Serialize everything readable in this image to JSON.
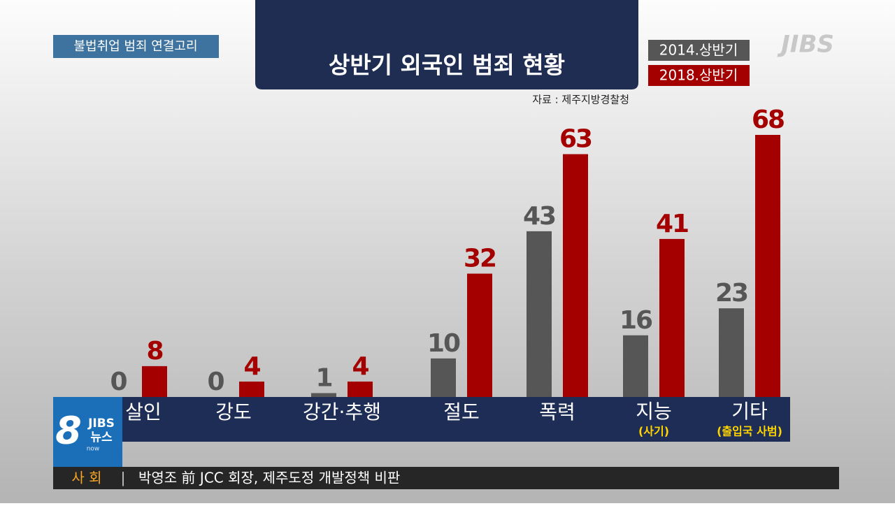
{
  "chart_data": {
    "type": "bar",
    "title": "상반기 외국인 범죄 현황",
    "source": "자료 : 제주지방경찰청",
    "categories": [
      "살인",
      "강도",
      "강간·추행",
      "절도",
      "폭력",
      "지능",
      "기타"
    ],
    "category_notes": [
      null,
      null,
      null,
      null,
      null,
      "(사기)",
      "(출입국 사범)"
    ],
    "series": [
      {
        "name": "2014.상반기",
        "color": "#565656",
        "values": [
          0,
          0,
          1,
          10,
          43,
          16,
          23
        ]
      },
      {
        "name": "2018.상반기",
        "color": "#a50000",
        "values": [
          8,
          4,
          4,
          32,
          63,
          41,
          68
        ]
      }
    ]
  },
  "topic_tag": "불법취업 범죄 연결고리",
  "channel_logo": "JIBS",
  "news_logo": {
    "number": "8",
    "brand": "JIBS",
    "label": "뉴스",
    "sub": "now"
  },
  "ticker": {
    "section": "사 회",
    "separator": "|",
    "headline": "박영조 前 JCC 회장, 제주도정 개발정책 비판"
  }
}
